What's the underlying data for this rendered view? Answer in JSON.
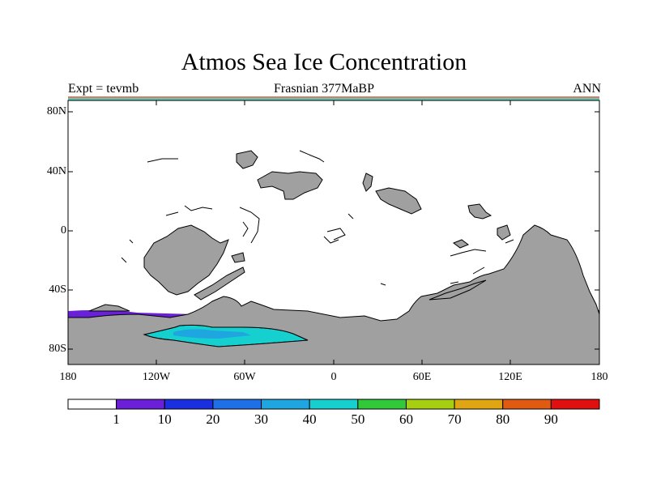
{
  "header": {
    "title": "Atmos Sea Ice Concentration",
    "left": "Expt = tevmb",
    "center": "Frasnian 377MaBP",
    "right": "ANN"
  },
  "map": {
    "projection": "cylindrical-equidistant",
    "lon_range": [
      -180,
      180
    ],
    "lat_range": [
      -90,
      90
    ],
    "lon_ticks": [
      "180",
      "120W",
      "60W",
      "0",
      "60E",
      "120E",
      "180"
    ],
    "lat_ticks": [
      "80N",
      "40N",
      "0",
      "40S",
      "80S"
    ],
    "land_color": "#a0a0a0",
    "ocean_color": "#ffffff"
  },
  "colorbar": {
    "levels": [
      "1",
      "10",
      "20",
      "30",
      "40",
      "50",
      "60",
      "70",
      "80",
      "90"
    ],
    "colors": [
      "#ffffff",
      "#6a1fd8",
      "#1a2fe0",
      "#1f6fe6",
      "#1fa6e0",
      "#16cfcf",
      "#31c83a",
      "#a6cf12",
      "#e0a512",
      "#e05a12",
      "#e01010"
    ]
  }
}
